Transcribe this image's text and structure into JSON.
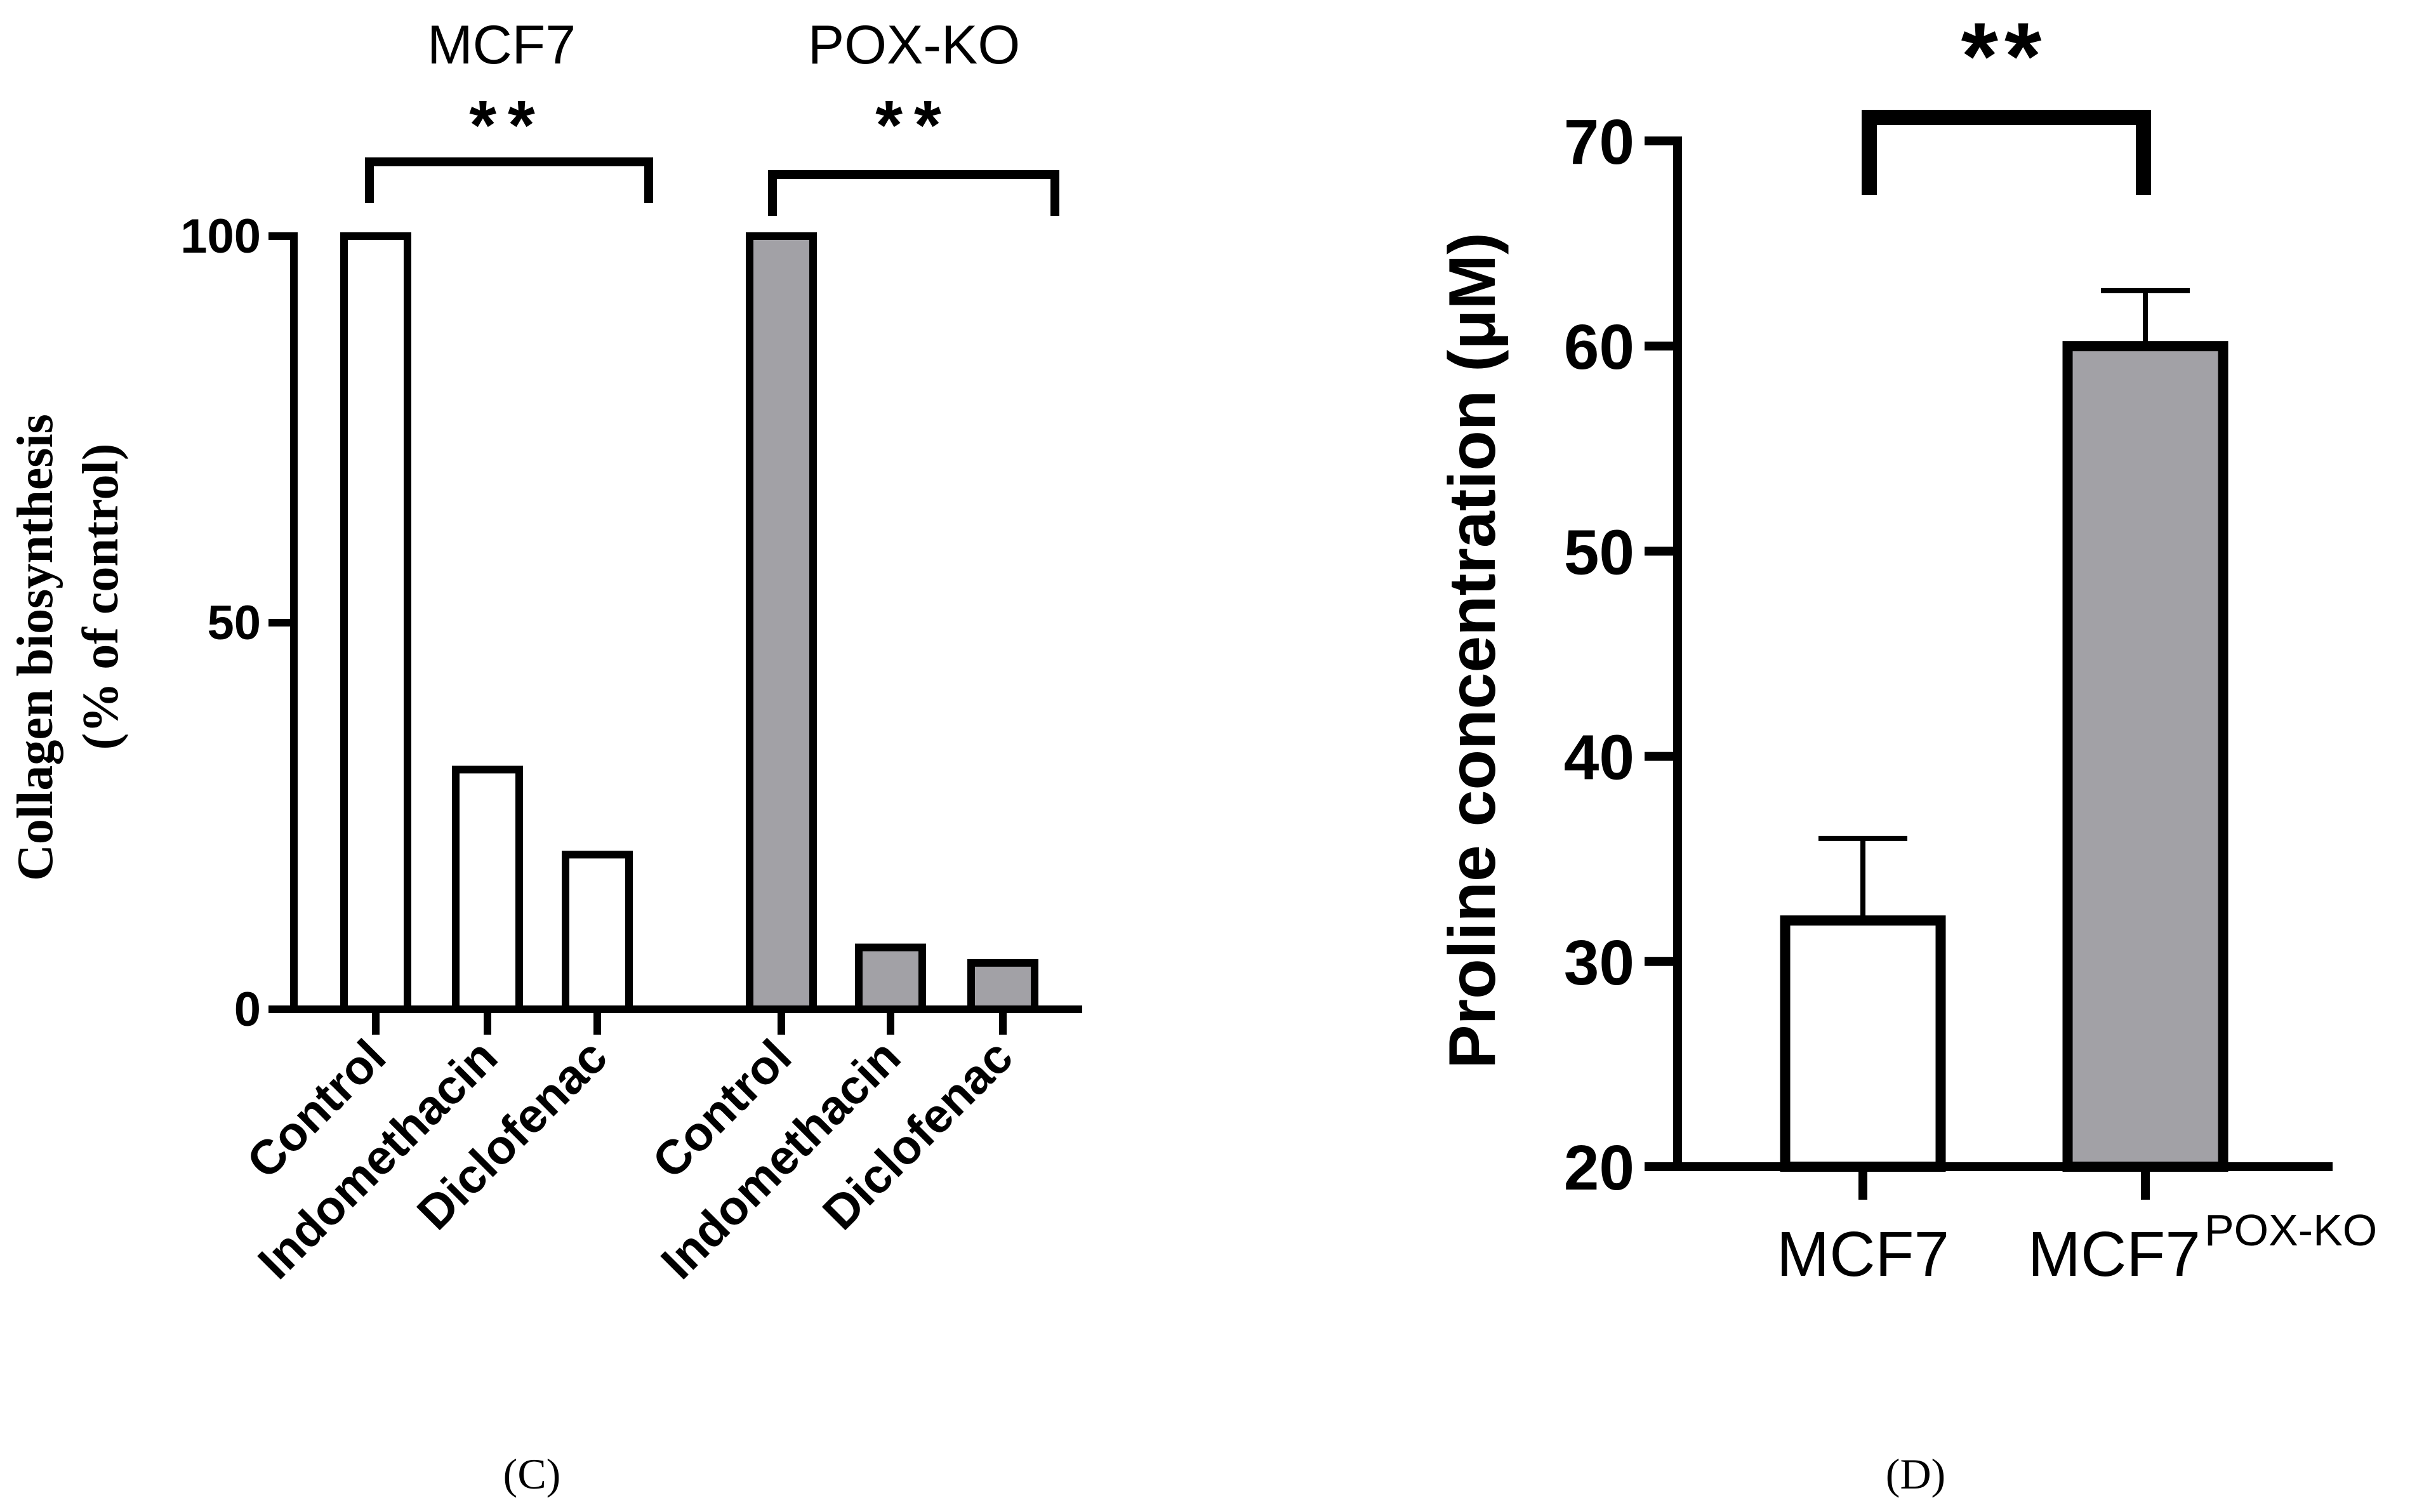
{
  "chart_data": [
    {
      "panel_label": "(C)",
      "type": "bar",
      "groups": [
        {
          "name": "MCF7",
          "significance": "**",
          "fill": "#ffffff",
          "categories": [
            "Control",
            "Indomethacin",
            "Diclofenac"
          ],
          "values": [
            100,
            31,
            20
          ]
        },
        {
          "name": "POX-KO",
          "significance": "**",
          "fill": "#a2a1a6",
          "categories": [
            "Control",
            "Indomethacin",
            "Diclofenac"
          ],
          "values": [
            100,
            8,
            6
          ]
        }
      ],
      "ylabel_line1": "Collagen biosynthesis",
      "ylabel_line2": "(% of control)",
      "ylim": [
        0,
        100
      ],
      "yticks": [
        "0",
        "50",
        "100"
      ]
    },
    {
      "panel_label": "(D)",
      "type": "bar",
      "categories": [
        "MCF7",
        "MCF7"
      ],
      "category_superscripts": [
        "",
        "POX-KO"
      ],
      "values": [
        32,
        60
      ],
      "errors": [
        4,
        2.7
      ],
      "fills": [
        "#ffffff",
        "#a2a1a6"
      ],
      "significance": "**",
      "ylabel": "Proline concentration (μM)",
      "ylim": [
        20,
        70
      ],
      "yticks": [
        "20",
        "30",
        "40",
        "50",
        "60",
        "70"
      ]
    }
  ],
  "colors": {
    "axis": "#000000",
    "gray_fill": "#a2a1a6",
    "white_fill": "#ffffff"
  }
}
